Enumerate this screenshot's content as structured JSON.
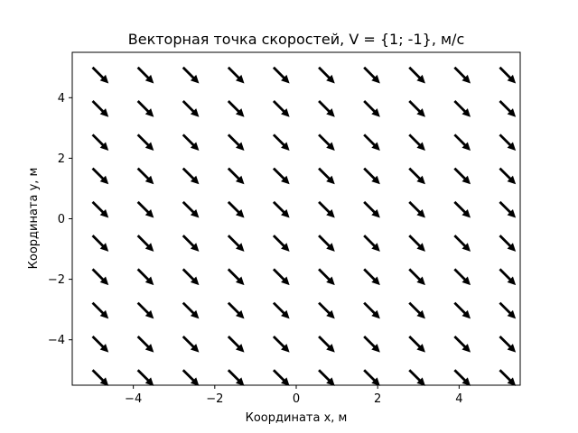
{
  "chart_data": {
    "type": "quiver",
    "title": "Векторная точка скоростей, V = {1; -1}, м/с",
    "xlabel": "Координата x, м",
    "ylabel": "Координата y, м",
    "xlim": [
      -5.5,
      5.5
    ],
    "ylim": [
      -5.5,
      5.5
    ],
    "grid": false,
    "vector": {
      "vx": 1,
      "vy": -1
    },
    "x": [
      -5.0,
      -3.889,
      -2.778,
      -1.667,
      -0.556,
      0.556,
      1.667,
      2.778,
      3.889,
      5.0
    ],
    "y": [
      -5.0,
      -3.889,
      -2.778,
      -1.667,
      -0.556,
      0.556,
      1.667,
      2.778,
      3.889,
      5.0
    ],
    "xticks": [
      -4,
      -2,
      0,
      2,
      4
    ],
    "yticks": [
      -4,
      -2,
      0,
      2,
      4
    ],
    "xtick_labels": [
      "−4",
      "−2",
      "0",
      "2",
      "4"
    ],
    "ytick_labels": [
      "−4",
      "−2",
      "0",
      "2",
      "4"
    ],
    "arrow_color": "#000000"
  }
}
